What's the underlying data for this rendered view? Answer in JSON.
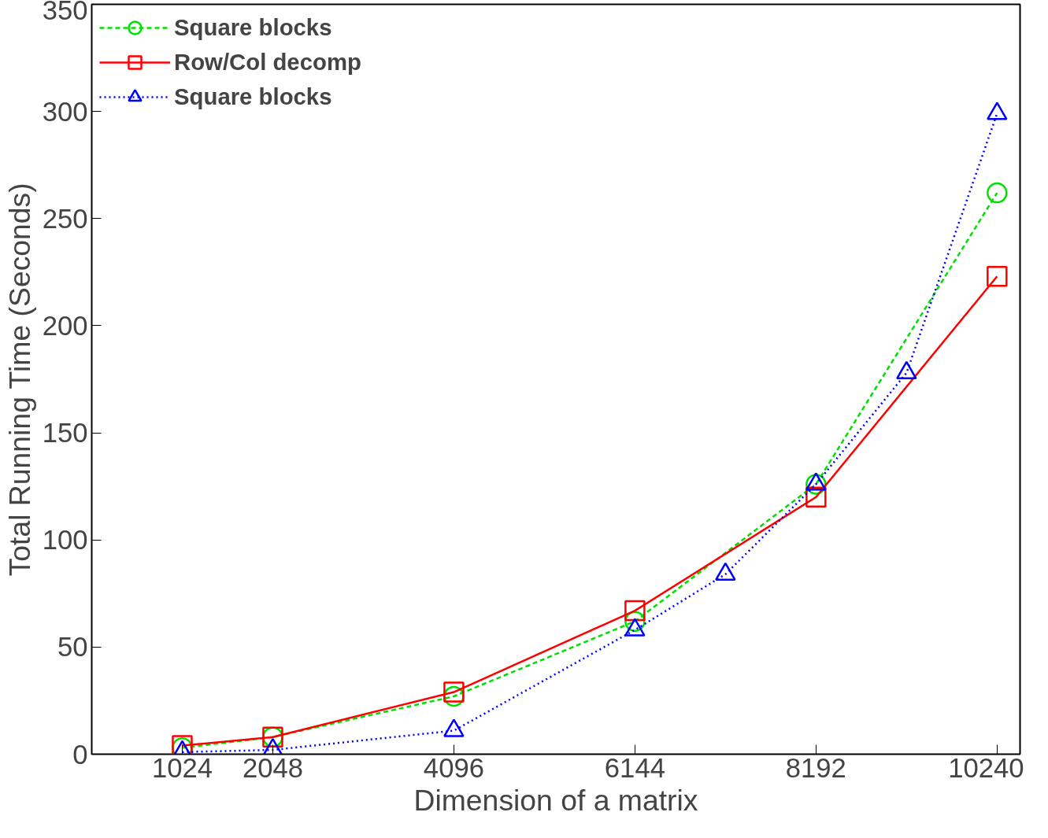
{
  "chart_data": {
    "type": "line",
    "xlabel": "Dimension of a matrix",
    "ylabel": "Total Running Time (Seconds)",
    "xlim": [
      0,
      10500
    ],
    "ylim": [
      0,
      350
    ],
    "xticks": [
      1024,
      2048,
      4096,
      6144,
      8192,
      10240
    ],
    "yticks": [
      0,
      50,
      100,
      150,
      200,
      250,
      300,
      350
    ],
    "grid": false,
    "legend": "top left",
    "series": [
      {
        "name": "Square blocks",
        "color": "#00e000",
        "marker": "circle",
        "line_style": "dashed",
        "x": [
          1024,
          2048,
          4096,
          6144,
          8192,
          10240
        ],
        "values": [
          3,
          8,
          27,
          62,
          126,
          262
        ]
      },
      {
        "name": "Row/Col decomp",
        "color": "#ff0000",
        "marker": "square",
        "line_style": "solid",
        "x": [
          1024,
          2048,
          4096,
          6144,
          8192,
          10240
        ],
        "values": [
          4,
          8,
          29,
          67,
          120,
          223
        ]
      },
      {
        "name": "Square blocks",
        "color": "#0000ff",
        "marker": "triangle",
        "line_style": "dotted",
        "x": [
          1024,
          2048,
          4096,
          6144,
          7168,
          8192,
          9216,
          10240
        ],
        "values": [
          1,
          2,
          11,
          58,
          84,
          126,
          178,
          299
        ]
      }
    ]
  }
}
